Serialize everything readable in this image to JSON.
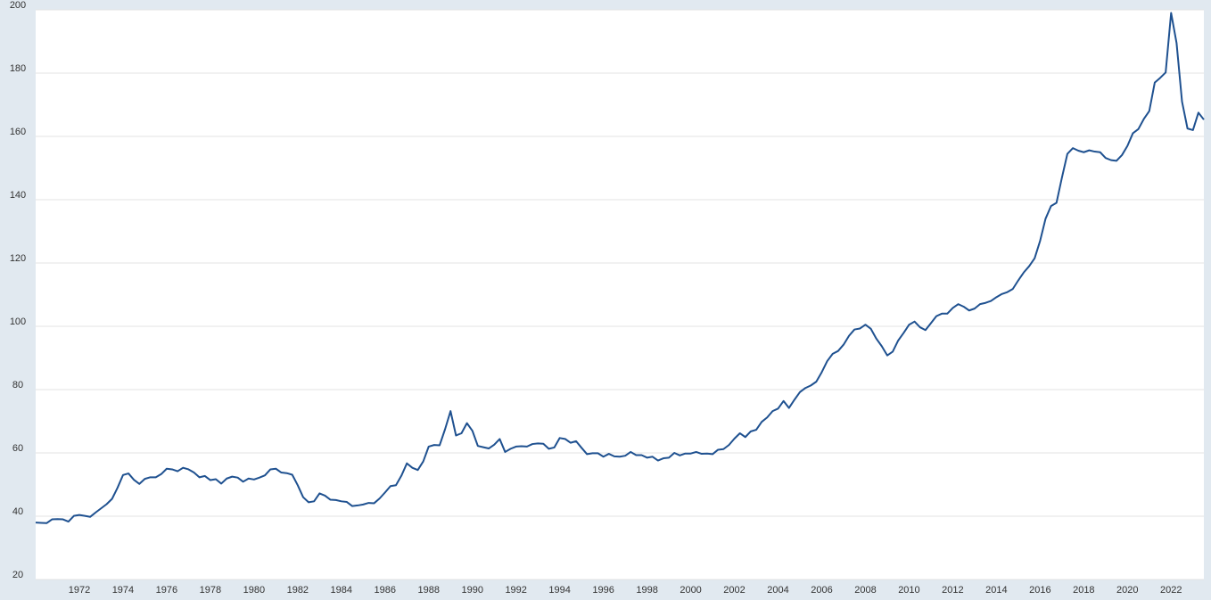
{
  "chart_data": {
    "type": "line",
    "color": "#1f5190",
    "grid": true,
    "xlim": [
      1970,
      2023.5
    ],
    "ylim": [
      20,
      200
    ],
    "yticks": [
      20,
      40,
      60,
      80,
      100,
      120,
      140,
      160,
      180,
      200
    ],
    "xticks": [
      1972,
      1974,
      1976,
      1978,
      1980,
      1982,
      1984,
      1986,
      1988,
      1990,
      1992,
      1994,
      1996,
      1998,
      2000,
      2002,
      2004,
      2006,
      2008,
      2010,
      2012,
      2014,
      2016,
      2018,
      2020,
      2022
    ],
    "x": [
      1970,
      1970.25,
      1970.5,
      1970.75,
      1971,
      1971.25,
      1971.5,
      1971.75,
      1972,
      1972.25,
      1972.5,
      1972.75,
      1973,
      1973.25,
      1973.5,
      1973.75,
      1974,
      1974.25,
      1974.5,
      1974.75,
      1975,
      1975.25,
      1975.5,
      1975.75,
      1976,
      1976.25,
      1976.5,
      1976.75,
      1977,
      1977.25,
      1977.5,
      1977.75,
      1978,
      1978.25,
      1978.5,
      1978.75,
      1979,
      1979.25,
      1979.5,
      1979.75,
      1980,
      1980.25,
      1980.5,
      1980.75,
      1981,
      1981.25,
      1981.5,
      1981.75,
      1982,
      1982.25,
      1982.5,
      1982.75,
      1983,
      1983.25,
      1983.5,
      1983.75,
      1984,
      1984.25,
      1984.5,
      1984.75,
      1985,
      1985.25,
      1985.5,
      1985.75,
      1986,
      1986.25,
      1986.5,
      1986.75,
      1987,
      1987.25,
      1987.5,
      1987.75,
      1988,
      1988.25,
      1988.5,
      1988.75,
      1989,
      1989.25,
      1989.5,
      1989.75,
      1990,
      1990.25,
      1990.5,
      1990.75,
      1991,
      1991.25,
      1991.5,
      1991.75,
      1992,
      1992.25,
      1992.5,
      1992.75,
      1993,
      1993.25,
      1993.5,
      1993.75,
      1994,
      1994.25,
      1994.5,
      1994.75,
      1995,
      1995.25,
      1995.5,
      1995.75,
      1996,
      1996.25,
      1996.5,
      1996.75,
      1997,
      1997.25,
      1997.5,
      1997.75,
      1998,
      1998.25,
      1998.5,
      1998.75,
      1999,
      1999.25,
      1999.5,
      1999.75,
      2000,
      2000.25,
      2000.5,
      2000.75,
      2001,
      2001.25,
      2001.5,
      2001.75,
      2002,
      2002.25,
      2002.5,
      2002.75,
      2003,
      2003.25,
      2003.5,
      2003.75,
      2004,
      2004.25,
      2004.5,
      2004.75,
      2005,
      2005.25,
      2005.5,
      2005.75,
      2006,
      2006.25,
      2006.5,
      2006.75,
      2007,
      2007.25,
      2007.5,
      2007.75,
      2008,
      2008.25,
      2008.5,
      2008.75,
      2009,
      2009.25,
      2009.5,
      2009.75,
      2010,
      2010.25,
      2010.5,
      2010.75,
      2011,
      2011.25,
      2011.5,
      2011.75,
      2012,
      2012.25,
      2012.5,
      2012.75,
      2013,
      2013.25,
      2013.5,
      2013.75,
      2014,
      2014.25,
      2014.5,
      2014.75,
      2015,
      2015.25,
      2015.5,
      2015.75,
      2016,
      2016.25,
      2016.5,
      2016.75,
      2017,
      2017.25,
      2017.5,
      2017.75,
      2018,
      2018.25,
      2018.5,
      2018.75,
      2019,
      2019.25,
      2019.5,
      2019.75,
      2020,
      2020.25,
      2020.5,
      2020.75,
      2021,
      2021.25,
      2021.5,
      2021.75,
      2022,
      2022.25,
      2022.5,
      2022.75,
      2023,
      2023.25,
      2023.5
    ],
    "values": [
      38,
      37.9,
      37.8,
      39,
      39.1,
      39,
      38.3,
      40.1,
      40.4,
      40.1,
      39.8,
      41.2,
      42.5,
      43.8,
      45.5,
      49,
      53,
      53.5,
      51.5,
      50.2,
      51.8,
      52.3,
      52.3,
      53.3,
      55,
      54.8,
      54.2,
      55.3,
      54.8,
      53.8,
      52.3,
      52.7,
      51.4,
      51.7,
      50.3,
      51.9,
      52.5,
      52.2,
      50.9,
      51.9,
      51.6,
      52.2,
      52.9,
      54.8,
      55,
      53.8,
      53.6,
      53.1,
      49.8,
      46,
      44.4,
      44.7,
      47.2,
      46.5,
      45.2,
      45.1,
      44.7,
      44.5,
      43.2,
      43.4,
      43.7,
      44.2,
      44.1,
      45.6,
      47.5,
      49.5,
      49.8,
      52.8,
      56.7,
      55.3,
      54.6,
      57.3,
      62,
      62.5,
      62.4,
      67.5,
      73.2,
      65.5,
      66.2,
      69.4,
      67,
      62.2,
      61.8,
      61.4,
      62.6,
      64.4,
      60.3,
      61.3,
      62,
      62.1,
      62,
      62.8,
      63,
      62.9,
      61.3,
      61.7,
      64.7,
      64.4,
      63.2,
      63.7,
      61.6,
      59.6,
      59.9,
      59.9,
      58.8,
      59.7,
      58.9,
      58.8,
      59.1,
      60.3,
      59.3,
      59.3,
      58.5,
      58.8,
      57.6,
      58.3,
      58.5,
      60,
      59.2,
      59.8,
      59.8,
      60.3,
      59.7,
      59.8,
      59.6,
      61,
      61.2,
      62.5,
      64.5,
      66.2,
      65,
      66.8,
      67.3,
      69.8,
      71.2,
      73.2,
      74,
      76.4,
      74.2,
      76.8,
      79.2,
      80.5,
      81.3,
      82.5,
      85.5,
      89,
      91.3,
      92.2,
      94.2,
      97,
      99,
      99.3,
      100.5,
      99.2,
      96.1,
      93.7,
      90.8,
      92,
      95.5,
      97.9,
      100.5,
      101.5,
      99.7,
      98.8,
      101,
      103.2,
      104,
      104,
      105.8,
      107,
      106.2,
      105,
      105.6,
      107,
      107.4,
      108,
      109.2,
      110.2,
      110.8,
      111.8,
      114.5,
      117,
      119,
      121.5,
      127,
      134,
      138,
      139,
      147,
      154.5,
      156.3,
      155.5,
      155,
      155.6,
      155.2,
      155,
      153.2,
      152.5,
      152.3,
      154.1,
      157,
      161,
      162.3,
      165.5,
      168,
      177,
      178.5,
      180.2,
      199,
      189.5,
      171,
      162.5,
      162,
      167.5,
      165.3
    ]
  }
}
